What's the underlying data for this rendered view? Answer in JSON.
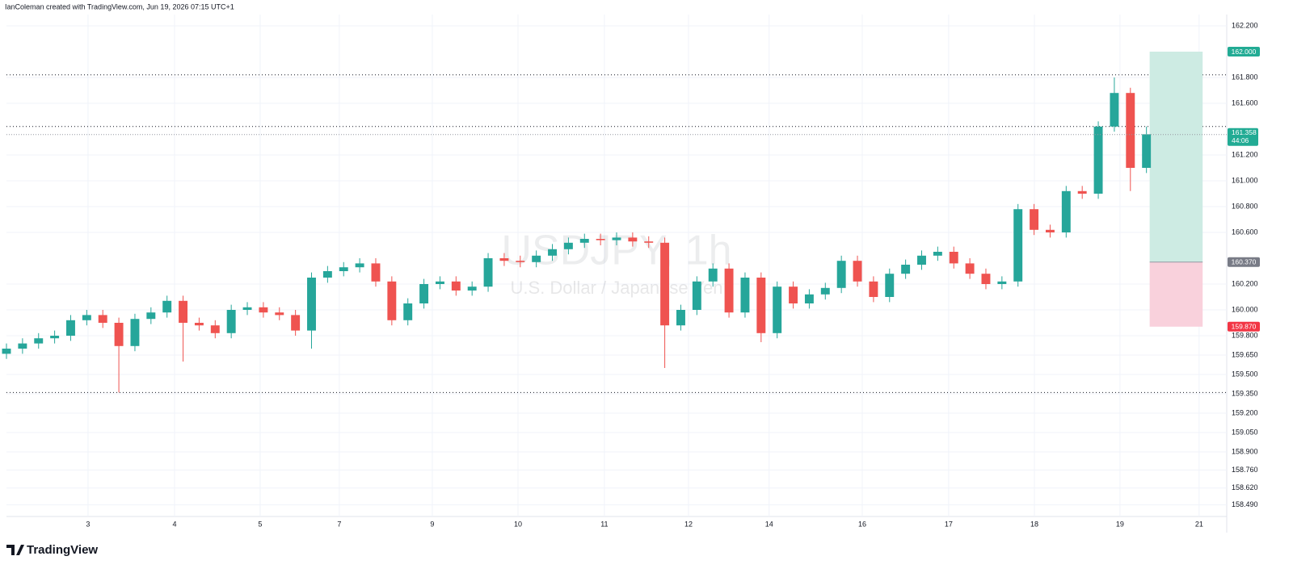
{
  "header": {
    "attribution": "IanColeman created with TradingView.com, Jun 19, 2026 07:15 UTC+1"
  },
  "footer": {
    "brand": "TradingView"
  },
  "chart_data": {
    "type": "candlestick",
    "watermark": {
      "symbol": "USDJPY, 1h",
      "description": "U.S. Dollar / Japanese Yen"
    },
    "up_color": "#26a69a",
    "down_color": "#ef5350",
    "grid": true,
    "x": [
      0,
      1,
      2,
      3,
      4,
      5,
      6,
      7,
      8,
      9,
      10,
      11,
      12,
      13,
      14,
      15,
      16,
      17,
      18,
      19,
      20,
      21,
      22,
      23,
      24,
      25,
      26,
      27,
      28,
      29,
      30,
      31,
      32,
      33,
      34,
      35,
      36,
      37,
      38,
      39,
      40,
      41,
      42,
      43,
      44,
      45,
      46,
      47,
      48,
      49,
      50,
      51,
      52,
      53,
      54,
      55,
      56,
      57,
      58,
      59,
      60,
      61,
      62,
      63,
      64,
      65,
      66,
      67,
      68,
      69,
      70,
      71
    ],
    "open": [
      159.66,
      159.7,
      159.74,
      159.78,
      159.8,
      159.92,
      159.96,
      159.9,
      159.72,
      159.93,
      159.98,
      160.07,
      159.9,
      159.88,
      159.82,
      160.0,
      160.02,
      159.98,
      159.96,
      159.84,
      160.25,
      160.3,
      160.33,
      160.36,
      160.22,
      159.92,
      160.05,
      160.2,
      160.22,
      160.15,
      160.18,
      160.4,
      160.38,
      160.37,
      160.42,
      160.47,
      160.52,
      160.55,
      160.54,
      160.56,
      160.53,
      160.52,
      159.88,
      160.0,
      160.22,
      160.32,
      159.98,
      160.25,
      159.82,
      160.18,
      160.05,
      160.12,
      160.17,
      160.38,
      160.22,
      160.1,
      160.28,
      160.35,
      160.42,
      160.45,
      160.36,
      160.28,
      160.2,
      160.22,
      160.78,
      160.62,
      160.6,
      160.92,
      160.9,
      161.42,
      161.68,
      161.1
    ],
    "high": [
      159.74,
      159.78,
      159.82,
      159.84,
      159.96,
      160.0,
      160.0,
      159.94,
      159.97,
      160.02,
      160.11,
      160.11,
      159.94,
      159.92,
      160.04,
      160.06,
      160.06,
      160.02,
      160.0,
      160.29,
      160.34,
      160.37,
      160.4,
      160.4,
      160.26,
      160.09,
      160.24,
      160.26,
      160.26,
      160.22,
      160.44,
      160.44,
      160.42,
      160.46,
      160.51,
      160.56,
      160.59,
      160.59,
      160.6,
      160.6,
      160.57,
      160.56,
      160.04,
      160.26,
      160.36,
      160.36,
      160.29,
      160.29,
      160.22,
      160.22,
      160.16,
      160.21,
      160.42,
      160.42,
      160.26,
      160.32,
      160.39,
      160.46,
      160.49,
      160.49,
      160.4,
      160.32,
      160.26,
      160.82,
      160.82,
      160.66,
      160.96,
      160.96,
      161.46,
      161.8,
      161.72,
      161.42
    ],
    "low": [
      159.62,
      159.66,
      159.7,
      159.74,
      159.76,
      159.88,
      159.86,
      159.36,
      159.68,
      159.89,
      159.94,
      159.6,
      159.84,
      159.78,
      159.78,
      159.96,
      159.94,
      159.92,
      159.8,
      159.7,
      160.21,
      160.26,
      160.29,
      160.18,
      159.88,
      159.88,
      160.01,
      160.16,
      160.11,
      160.11,
      160.14,
      160.34,
      160.33,
      160.33,
      160.38,
      160.43,
      160.48,
      160.5,
      160.5,
      160.49,
      160.48,
      159.55,
      159.84,
      159.96,
      160.18,
      159.94,
      159.94,
      159.75,
      159.78,
      160.01,
      160.01,
      160.08,
      160.13,
      160.18,
      160.06,
      160.06,
      160.24,
      160.31,
      160.38,
      160.32,
      160.24,
      160.16,
      160.16,
      160.18,
      160.58,
      160.56,
      160.56,
      160.86,
      160.86,
      161.38,
      160.92,
      161.06
    ],
    "close": [
      159.7,
      159.74,
      159.78,
      159.8,
      159.92,
      159.96,
      159.9,
      159.72,
      159.93,
      159.98,
      160.07,
      159.9,
      159.88,
      159.82,
      160.0,
      160.02,
      159.98,
      159.96,
      159.84,
      160.25,
      160.3,
      160.33,
      160.36,
      160.22,
      159.92,
      160.05,
      160.2,
      160.22,
      160.15,
      160.18,
      160.4,
      160.38,
      160.37,
      160.42,
      160.47,
      160.52,
      160.55,
      160.54,
      160.56,
      160.53,
      160.52,
      159.88,
      160.0,
      160.22,
      160.32,
      159.98,
      160.25,
      159.82,
      160.18,
      160.05,
      160.12,
      160.17,
      160.38,
      160.22,
      160.1,
      160.28,
      160.35,
      160.42,
      160.45,
      160.36,
      160.28,
      160.2,
      160.22,
      160.78,
      160.62,
      160.6,
      160.92,
      160.9,
      161.42,
      161.68,
      161.1,
      161.36
    ],
    "xlim": [
      0,
      76
    ],
    "xticks": [
      {
        "value": 5.08,
        "label": "3"
      },
      {
        "value": 10.47,
        "label": "4"
      },
      {
        "value": 15.8,
        "label": "5"
      },
      {
        "value": 20.73,
        "label": "7"
      },
      {
        "value": 26.52,
        "label": "9"
      },
      {
        "value": 31.86,
        "label": "10"
      },
      {
        "value": 37.24,
        "label": "11"
      },
      {
        "value": 42.48,
        "label": "12"
      },
      {
        "value": 47.5,
        "label": "14"
      },
      {
        "value": 53.3,
        "label": "16"
      },
      {
        "value": 58.68,
        "label": "17"
      },
      {
        "value": 64.02,
        "label": "18"
      },
      {
        "value": 69.35,
        "label": "19"
      },
      {
        "value": 74.28,
        "label": "21"
      }
    ],
    "ylim": [
      158.4,
      162.2875
    ],
    "yticks": [
      {
        "value": 162.2,
        "label": "162.200"
      },
      {
        "value": 161.8,
        "label": "161.800"
      },
      {
        "value": 161.6,
        "label": "161.600"
      },
      {
        "value": 161.2,
        "label": "161.200"
      },
      {
        "value": 161.0,
        "label": "161.000"
      },
      {
        "value": 160.8,
        "label": "160.800"
      },
      {
        "value": 160.6,
        "label": "160.600"
      },
      {
        "value": 160.2,
        "label": "160.200"
      },
      {
        "value": 160.0,
        "label": "160.000"
      },
      {
        "value": 159.8,
        "label": "159.800"
      },
      {
        "value": 159.65,
        "label": "159.650"
      },
      {
        "value": 159.5,
        "label": "159.500"
      },
      {
        "value": 159.35,
        "label": "159.350"
      },
      {
        "value": 159.2,
        "label": "159.200"
      },
      {
        "value": 159.05,
        "label": "159.050"
      },
      {
        "value": 158.9,
        "label": "158.900"
      },
      {
        "value": 158.76,
        "label": "158.760"
      },
      {
        "value": 158.62,
        "label": "158.620"
      },
      {
        "value": 158.49,
        "label": "158.490"
      }
    ],
    "levels": [
      161.82,
      161.42,
      159.36
    ],
    "position": {
      "x_range": [
        71.2,
        74.5
      ],
      "target": 162.0,
      "entry": 160.37,
      "stop": 159.87,
      "profit_color": "#cdebe3",
      "loss_color": "#f9d1dc"
    },
    "price_tags": [
      {
        "value": 162.0,
        "label": "162.000",
        "color": "#22ab94"
      },
      {
        "value": 160.37,
        "label": "160.370",
        "color": "#787b86"
      },
      {
        "value": 159.87,
        "label": "159.870",
        "color": "#f23645"
      }
    ],
    "last_price": {
      "value": 161.358,
      "label": "161.358",
      "countdown": "44:06",
      "color": "#22ab94"
    }
  }
}
